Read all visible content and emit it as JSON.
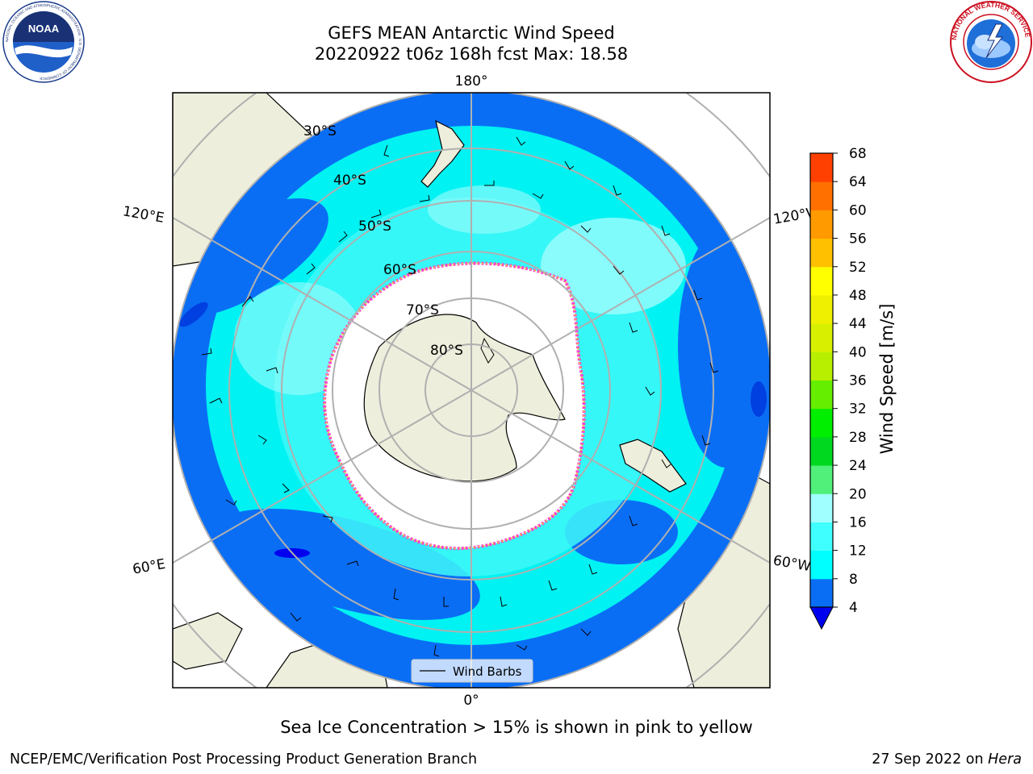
{
  "header": {
    "title_line1": "GEFS MEAN Antarctic Wind Speed",
    "title_line2": "20220922 t06z 168h fcst   Max: 18.58"
  },
  "logos": {
    "left": "NOAA",
    "left_ring_text": "NATIONAL OCEANIC AND ATMOSPHERIC ADMINISTRATION · U.S. DEPARTMENT OF COMMERCE",
    "right_ring_text": "NATIONAL WEATHER SERVICE"
  },
  "map": {
    "projection": "south-polar-stereographic",
    "longitude_labels": [
      "180°",
      "120°E",
      "120°W",
      "60°E",
      "60°W",
      "0°"
    ],
    "latitude_labels": [
      "30°S",
      "40°S",
      "50°S",
      "60°S",
      "70°S",
      "80°S"
    ],
    "legend_label": "Wind Barbs",
    "colors": {
      "land": "#eeeedc",
      "ice_edge_pink": "#ff44cc",
      "ice_edge_yellow": "#ffc040",
      "speed_4_8": "#0a6ef5",
      "speed_8_12": "#00f2f2",
      "speed_12_16": "#40f8f8",
      "speed_16_20": "#a0fcfc"
    }
  },
  "colorbar": {
    "label": "Wind Speed [m/s]",
    "ticks": [
      "4",
      "8",
      "12",
      "16",
      "20",
      "24",
      "28",
      "32",
      "36",
      "40",
      "44",
      "48",
      "52",
      "56",
      "60",
      "64",
      "68"
    ],
    "colors": [
      "#0a6ef5",
      "#00ffff",
      "#40ffff",
      "#a0ffff",
      "#50f07a",
      "#00d820",
      "#00ee00",
      "#66ee00",
      "#b8ee00",
      "#d8f000",
      "#eef000",
      "#ffff00",
      "#ffc000",
      "#ff9a00",
      "#ff7000",
      "#ff4000",
      "#ff0000"
    ],
    "extend_color": "#0000ee"
  },
  "note": "Sea Ice Concentration > 15% is shown in pink to yellow",
  "footer": {
    "left": "NCEP/EMC/Verification Post Processing Product Generation Branch",
    "right_prefix": "27 Sep 2022 on ",
    "right_host": "Hera"
  }
}
